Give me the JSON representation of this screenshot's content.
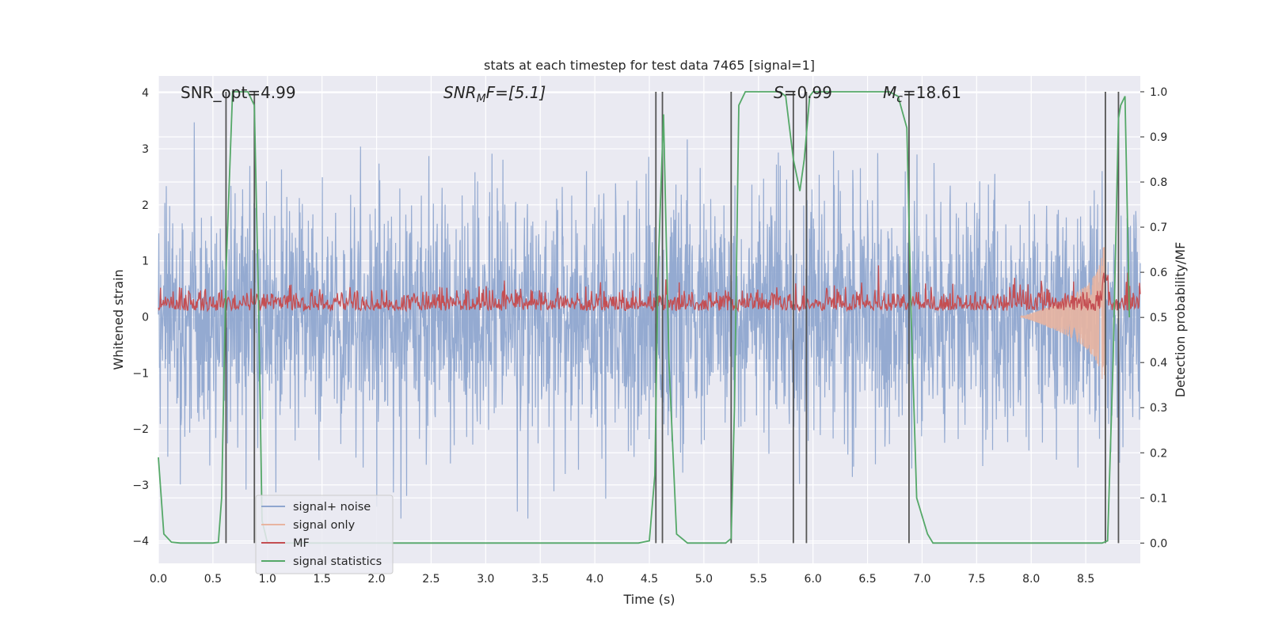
{
  "chart_data": {
    "type": "line",
    "title": "stats at each timestep for test data 7465 [signal=1]",
    "xlabel": "Time (s)",
    "ylabel_left": "Whitened strain",
    "ylabel_right": "Detection probability/MF",
    "xlim": [
      0,
      9.0
    ],
    "ylim_left": [
      -4.4,
      4.3
    ],
    "ylim_right": [
      -0.045,
      1.035
    ],
    "x_ticks": [
      "0.0",
      "0.5",
      "1.0",
      "1.5",
      "2.0",
      "2.5",
      "3.0",
      "3.5",
      "4.0",
      "4.5",
      "5.0",
      "5.5",
      "6.0",
      "6.5",
      "7.0",
      "7.5",
      "8.0",
      "8.5"
    ],
    "y_ticks_left": [
      "4",
      "3",
      "2",
      "1",
      "0",
      "−1",
      "−2",
      "−3",
      "−4"
    ],
    "y_ticks_right": [
      "1.0",
      "0.9",
      "0.8",
      "0.7",
      "0.6",
      "0.5",
      "0.4",
      "0.3",
      "0.2",
      "0.1",
      "0.0"
    ],
    "grid": true,
    "legend_position": "lower-left",
    "annotations": {
      "snr_opt": "SNR_opt=4.99",
      "snr_mf_pre": "SNR",
      "snr_mf_sub": "M",
      "snr_mf_post": "F=[5.1]",
      "s_pre": "S",
      "s_post": "=0.99",
      "mc_pre": "M",
      "mc_sub": "c",
      "mc_post": "=18.61"
    },
    "series": [
      {
        "name": "signal+ noise",
        "color": "#8fa6cf",
        "description": "whitened strain noise, amplitude ~ ±2.5 (peaks ±3.5) across full time range"
      },
      {
        "name": "signal only",
        "color": "#e8b4a0",
        "description": "chirp signal growing from ~8.0 s to ~8.68 s, max amplitude ~ ±1.2"
      },
      {
        "name": "MF",
        "color": "#c44e52",
        "description": "matched filter output on right axis, fluctuating ~0.50–0.58"
      },
      {
        "name": "signal statistics",
        "color": "#55a868",
        "x": [
          0.0,
          0.05,
          0.12,
          0.2,
          0.3,
          0.4,
          0.5,
          0.55,
          0.58,
          0.62,
          0.68,
          0.72,
          0.76,
          0.82,
          0.88,
          0.92,
          0.95,
          1.0,
          1.5,
          2.0,
          2.5,
          3.0,
          3.5,
          4.0,
          4.4,
          4.5,
          4.55,
          4.58,
          4.63,
          4.68,
          4.75,
          4.85,
          5.0,
          5.2,
          5.25,
          5.28,
          5.32,
          5.38,
          5.5,
          5.7,
          5.75,
          5.82,
          5.88,
          5.92,
          5.97,
          6.0,
          6.1,
          6.5,
          6.7,
          6.78,
          6.86,
          6.9,
          6.95,
          7.05,
          7.1,
          7.3,
          8.0,
          8.5,
          8.65,
          8.7,
          8.75,
          8.8,
          8.82,
          8.86,
          8.9
        ],
        "y": [
          0.19,
          0.02,
          0.002,
          0.0,
          0.0,
          0.0,
          0.0,
          0.002,
          0.1,
          0.6,
          1.0,
          1.0,
          1.0,
          1.0,
          0.97,
          0.5,
          0.05,
          0.0,
          0.0,
          0.0,
          0.0,
          0.0,
          0.0,
          0.0,
          0.0,
          0.005,
          0.15,
          0.6,
          0.95,
          0.4,
          0.02,
          0.0,
          0.0,
          0.0,
          0.01,
          0.3,
          0.97,
          1.0,
          1.0,
          1.0,
          0.99,
          0.85,
          0.78,
          0.85,
          0.99,
          1.0,
          1.0,
          1.0,
          1.0,
          0.99,
          0.92,
          0.5,
          0.1,
          0.02,
          0.0,
          0.0,
          0.0,
          0.0,
          0.0,
          0.005,
          0.4,
          0.94,
          0.97,
          0.99,
          0.5
        ]
      }
    ],
    "vertical_lines": [
      0.62,
      0.88,
      4.56,
      4.62,
      5.25,
      5.82,
      5.94,
      6.88,
      8.68,
      8.8
    ],
    "colors": {
      "background": "#eaeaf2",
      "grid": "#ffffff",
      "vline": "#555555",
      "noise": "#8fa6cf",
      "signal_only": "#e8b4a0",
      "mf": "#c44e52",
      "stats": "#55a868"
    }
  }
}
